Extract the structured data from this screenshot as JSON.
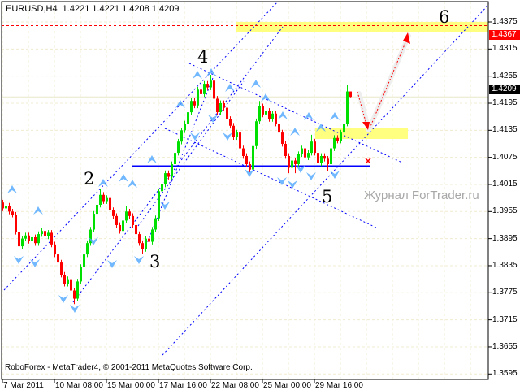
{
  "header": {
    "title": "EURUSD,H4  1.4221 1.4221 1.4208 1.4209"
  },
  "copyright": "RoboForex - MetaTrader4, © 2001-2011 MetaQuotes Software Corp.",
  "watermark": "Журнал ForTrader.ru",
  "wave_labels": {
    "w2": "2",
    "w3": "3",
    "w4": "4",
    "w5": "5",
    "w6": "6"
  },
  "tags": {
    "target_level": "1.4367",
    "current_price": "1.4209"
  },
  "colors": {
    "bull": "#00e000",
    "bear": "#ff0000",
    "zone": "#ffff80",
    "channel": "#0000ff",
    "fractal": "#4da6ff",
    "target": "#ff0000"
  },
  "chart_data": {
    "type": "candlestick",
    "symbol": "EURUSD",
    "timeframe": "H4",
    "ylim": [
      1.3565,
      1.4405
    ],
    "grid": true,
    "y_ticks": [
      "1.4375",
      "1.4315",
      "1.4255",
      "1.4195",
      "1.4135",
      "1.4075",
      "1.4015",
      "1.3955",
      "1.3895",
      "1.3835",
      "1.3775",
      "1.3715",
      "1.3655",
      "1.3595"
    ],
    "x_ticks": [
      "7 Mar 2011",
      "10 Mar 08:00",
      "15 Mar 00:00",
      "17 Mar 16:00",
      "22 Mar 08:00",
      "25 Mar 00:00",
      "29 Mar 16:00"
    ],
    "support_level": 1.4056,
    "target_level": 1.4367,
    "candles": [
      [
        1.3975,
        1.3981,
        1.3956,
        1.3962
      ],
      [
        1.3962,
        1.3974,
        1.3956,
        1.3968
      ],
      [
        1.3968,
        1.3974,
        1.3949,
        1.3955
      ],
      [
        1.3955,
        1.3961,
        1.3942,
        1.3948
      ],
      [
        1.3948,
        1.3954,
        1.3904,
        1.391
      ],
      [
        1.391,
        1.3916,
        1.3872,
        1.3878
      ],
      [
        1.3878,
        1.3901,
        1.3872,
        1.3895
      ],
      [
        1.3895,
        1.3908,
        1.3889,
        1.3902
      ],
      [
        1.3902,
        1.3908,
        1.3884,
        1.389
      ],
      [
        1.389,
        1.3904,
        1.3884,
        1.3898
      ],
      [
        1.3898,
        1.3904,
        1.3879,
        1.3885
      ],
      [
        1.3885,
        1.3911,
        1.3879,
        1.3905
      ],
      [
        1.3905,
        1.3918,
        1.3899,
        1.3912
      ],
      [
        1.3912,
        1.3918,
        1.3894,
        1.39
      ],
      [
        1.39,
        1.3914,
        1.3894,
        1.3908
      ],
      [
        1.3908,
        1.3914,
        1.3876,
        1.3882
      ],
      [
        1.3882,
        1.3888,
        1.3854,
        1.386
      ],
      [
        1.386,
        1.3866,
        1.3836,
        1.3842
      ],
      [
        1.3842,
        1.3848,
        1.3809,
        1.3815
      ],
      [
        1.3815,
        1.3821,
        1.3789,
        1.3795
      ],
      [
        1.3795,
        1.3811,
        1.3789,
        1.3805
      ],
      [
        1.3805,
        1.3811,
        1.3774,
        1.378
      ],
      [
        1.378,
        1.3786,
        1.375,
        1.3762
      ],
      [
        1.3762,
        1.3806,
        1.3756,
        1.38
      ],
      [
        1.38,
        1.3838,
        1.3794,
        1.3832
      ],
      [
        1.3832,
        1.3866,
        1.3826,
        1.386
      ],
      [
        1.386,
        1.3891,
        1.3854,
        1.3885
      ],
      [
        1.3885,
        1.3921,
        1.3879,
        1.3915
      ],
      [
        1.3915,
        1.3956,
        1.3909,
        1.395
      ],
      [
        1.395,
        1.3976,
        1.3944,
        1.397
      ],
      [
        1.397,
        1.4005,
        1.3964,
        1.3992
      ],
      [
        1.3992,
        1.3998,
        1.3972,
        1.3978
      ],
      [
        1.3978,
        1.3991,
        1.3972,
        1.3985
      ],
      [
        1.3985,
        1.3991,
        1.3952,
        1.3958
      ],
      [
        1.3958,
        1.3964,
        1.3939,
        1.3945
      ],
      [
        1.3945,
        1.3951,
        1.3919,
        1.3925
      ],
      [
        1.3925,
        1.3931,
        1.3906,
        1.3912
      ],
      [
        1.3912,
        1.3941,
        1.3906,
        1.3935
      ],
      [
        1.3935,
        1.3968,
        1.3929,
        1.3955
      ],
      [
        1.3955,
        1.3961,
        1.3939,
        1.3945
      ],
      [
        1.3945,
        1.3951,
        1.3919,
        1.3925
      ],
      [
        1.3925,
        1.3931,
        1.3899,
        1.3905
      ],
      [
        1.3905,
        1.3911,
        1.3879,
        1.3885
      ],
      [
        1.3885,
        1.3891,
        1.3862,
        1.3872
      ],
      [
        1.3872,
        1.3901,
        1.3866,
        1.3895
      ],
      [
        1.3895,
        1.3901,
        1.3882,
        1.3888
      ],
      [
        1.3888,
        1.3921,
        1.3882,
        1.3915
      ],
      [
        1.3915,
        1.3946,
        1.3909,
        1.394
      ],
      [
        1.394,
        1.4006,
        1.3934,
        1.4
      ],
      [
        1.4,
        1.4021,
        1.3994,
        1.4015
      ],
      [
        1.4015,
        1.4046,
        1.4009,
        1.404
      ],
      [
        1.404,
        1.4046,
        1.4026,
        1.4032
      ],
      [
        1.4032,
        1.4066,
        1.4026,
        1.406
      ],
      [
        1.406,
        1.4091,
        1.4054,
        1.4085
      ],
      [
        1.4085,
        1.4116,
        1.4079,
        1.411
      ],
      [
        1.411,
        1.4141,
        1.4104,
        1.4135
      ],
      [
        1.4135,
        1.4156,
        1.4129,
        1.415
      ],
      [
        1.415,
        1.4181,
        1.4144,
        1.4175
      ],
      [
        1.4175,
        1.4206,
        1.4169,
        1.42
      ],
      [
        1.42,
        1.4206,
        1.4184,
        1.419
      ],
      [
        1.419,
        1.4231,
        1.4184,
        1.4225
      ],
      [
        1.4225,
        1.4231,
        1.4209,
        1.4215
      ],
      [
        1.4215,
        1.4244,
        1.4209,
        1.4238
      ],
      [
        1.4238,
        1.4244,
        1.4224,
        1.423
      ],
      [
        1.423,
        1.4258,
        1.4224,
        1.4245
      ],
      [
        1.4245,
        1.4251,
        1.4199,
        1.4205
      ],
      [
        1.4205,
        1.4211,
        1.4169,
        1.4175
      ],
      [
        1.4175,
        1.4201,
        1.4169,
        1.4195
      ],
      [
        1.4195,
        1.4201,
        1.4179,
        1.4185
      ],
      [
        1.4185,
        1.4191,
        1.4154,
        1.416
      ],
      [
        1.416,
        1.4166,
        1.4139,
        1.4145
      ],
      [
        1.4145,
        1.4151,
        1.4114,
        1.412
      ],
      [
        1.412,
        1.4136,
        1.4114,
        1.413
      ],
      [
        1.413,
        1.4136,
        1.4089,
        1.4095
      ],
      [
        1.4095,
        1.4101,
        1.4072,
        1.4078
      ],
      [
        1.4078,
        1.4084,
        1.4054,
        1.406
      ],
      [
        1.406,
        1.4066,
        1.4042,
        1.4048
      ],
      [
        1.4048,
        1.4106,
        1.4042,
        1.41
      ],
      [
        1.41,
        1.4161,
        1.4094,
        1.4155
      ],
      [
        1.4155,
        1.42,
        1.4149,
        1.4188
      ],
      [
        1.4188,
        1.4194,
        1.4164,
        1.417
      ],
      [
        1.417,
        1.4184,
        1.4164,
        1.4178
      ],
      [
        1.4178,
        1.4184,
        1.4154,
        1.416
      ],
      [
        1.416,
        1.4178,
        1.4154,
        1.4172
      ],
      [
        1.4172,
        1.4178,
        1.4144,
        1.415
      ],
      [
        1.415,
        1.4156,
        1.4124,
        1.413
      ],
      [
        1.413,
        1.4136,
        1.4099,
        1.4105
      ],
      [
        1.4105,
        1.4111,
        1.4072,
        1.4078
      ],
      [
        1.4078,
        1.4084,
        1.404,
        1.4052
      ],
      [
        1.4052,
        1.4074,
        1.4046,
        1.4068
      ],
      [
        1.4068,
        1.4074,
        1.404,
        1.406
      ],
      [
        1.406,
        1.4088,
        1.4054,
        1.4082
      ],
      [
        1.4082,
        1.4101,
        1.4076,
        1.4095
      ],
      [
        1.4095,
        1.4101,
        1.4069,
        1.4075
      ],
      [
        1.4075,
        1.4091,
        1.4069,
        1.4085
      ],
      [
        1.4085,
        1.4125,
        1.4079,
        1.411
      ],
      [
        1.411,
        1.4116,
        1.4079,
        1.4085
      ],
      [
        1.4085,
        1.4091,
        1.4045,
        1.4062
      ],
      [
        1.4062,
        1.4084,
        1.4056,
        1.4078
      ],
      [
        1.4078,
        1.4084,
        1.4066,
        1.4072
      ],
      [
        1.4072,
        1.4078,
        1.4045,
        1.406
      ],
      [
        1.406,
        1.4101,
        1.4054,
        1.4095
      ],
      [
        1.4095,
        1.4124,
        1.4089,
        1.4118
      ],
      [
        1.4118,
        1.4124,
        1.4106,
        1.4112
      ],
      [
        1.4112,
        1.4136,
        1.4106,
        1.413
      ],
      [
        1.413,
        1.4156,
        1.4124,
        1.415
      ],
      [
        1.415,
        1.4235,
        1.4144,
        1.4221
      ],
      [
        1.4221,
        1.4221,
        1.4208,
        1.4209
      ]
    ]
  }
}
